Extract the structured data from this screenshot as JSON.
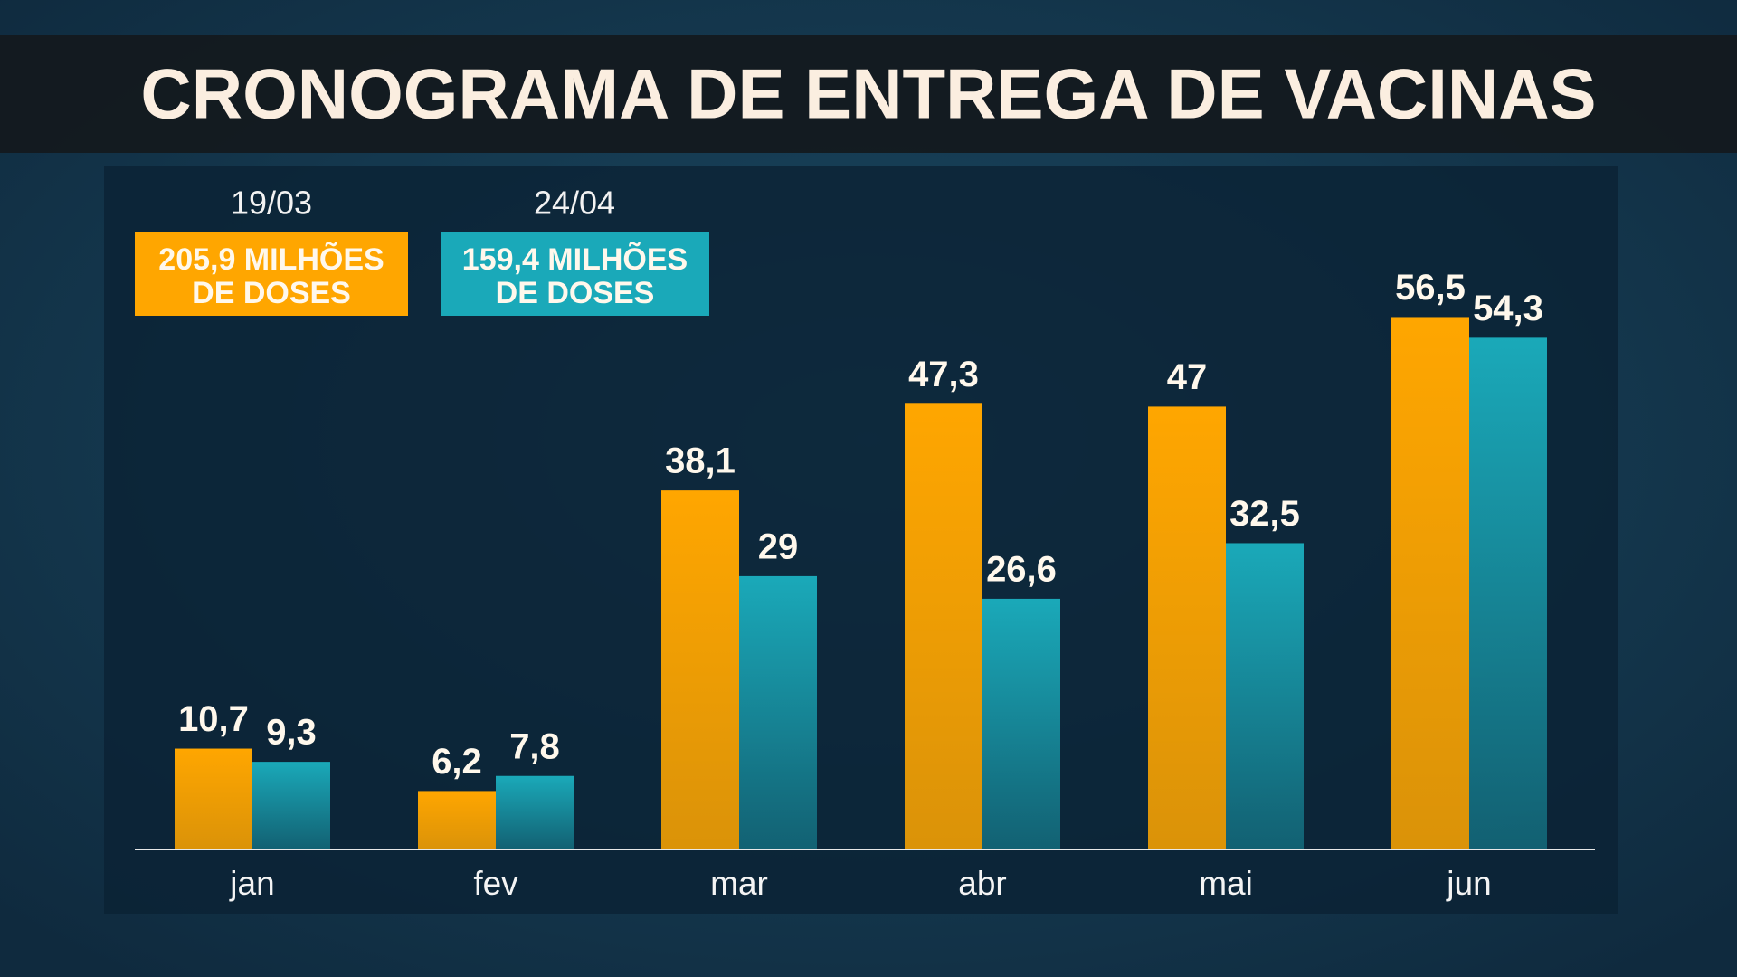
{
  "chart_data": {
    "type": "bar",
    "title": "CRONOGRAMA DE ENTREGA DE VACINAS",
    "categories": [
      "jan",
      "fev",
      "mar",
      "abr",
      "mai",
      "jun"
    ],
    "series": [
      {
        "name": "19/03",
        "total_label": [
          "205,9 MILHÕES",
          "DE DOSES"
        ],
        "color": "#ffa600",
        "values": [
          10.7,
          6.2,
          38.1,
          47.3,
          47,
          56.5
        ],
        "value_labels": [
          "10,7",
          "6,2",
          "38,1",
          "47,3",
          "47",
          "56,5"
        ]
      },
      {
        "name": "24/04",
        "total_label": [
          "159,4 MILHÕES",
          "DE DOSES"
        ],
        "color": "#1aa9b9",
        "values": [
          9.3,
          7.8,
          29,
          26.6,
          32.5,
          54.3
        ],
        "value_labels": [
          "9,3",
          "7,8",
          "29",
          "26,6",
          "32,5",
          "54,3"
        ]
      }
    ],
    "ylim": [
      0,
      60
    ]
  }
}
